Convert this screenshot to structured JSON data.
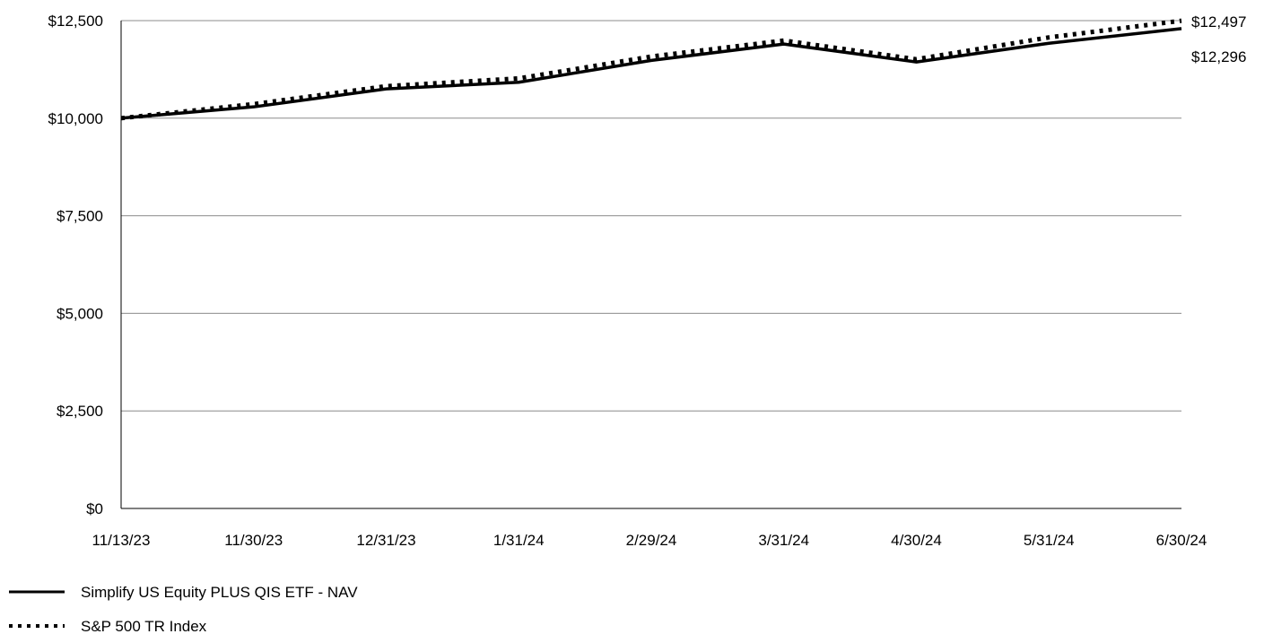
{
  "chart_data": {
    "type": "line",
    "title": "",
    "xlabel": "",
    "ylabel": "",
    "categories": [
      "11/13/23",
      "11/30/23",
      "12/31/23",
      "1/31/24",
      "2/29/24",
      "3/31/24",
      "4/30/24",
      "5/31/24",
      "6/30/24"
    ],
    "ylim": [
      0,
      12500
    ],
    "yticks": [
      {
        "value": 0,
        "label": "$0"
      },
      {
        "value": 2500,
        "label": "$2,500"
      },
      {
        "value": 5000,
        "label": "$5,000"
      },
      {
        "value": 7500,
        "label": "$7,500"
      },
      {
        "value": 10000,
        "label": "$10,000"
      },
      {
        "value": 12500,
        "label": "$12,500"
      }
    ],
    "grid": true,
    "legend_position": "bottom-left",
    "series": [
      {
        "name": "Simplify US Equity PLUS QIS ETF - NAV",
        "style": "solid",
        "color": "#000000",
        "values": [
          10000,
          10290,
          10750,
          10920,
          11480,
          11900,
          11440,
          11920,
          12296
        ],
        "end_label": "$12,296"
      },
      {
        "name": "S&P 500 TR Index",
        "style": "dotted",
        "color": "#000000",
        "values": [
          10000,
          10360,
          10820,
          11020,
          11580,
          11990,
          11510,
          12070,
          12497
        ],
        "end_label": "$12,497"
      }
    ]
  }
}
